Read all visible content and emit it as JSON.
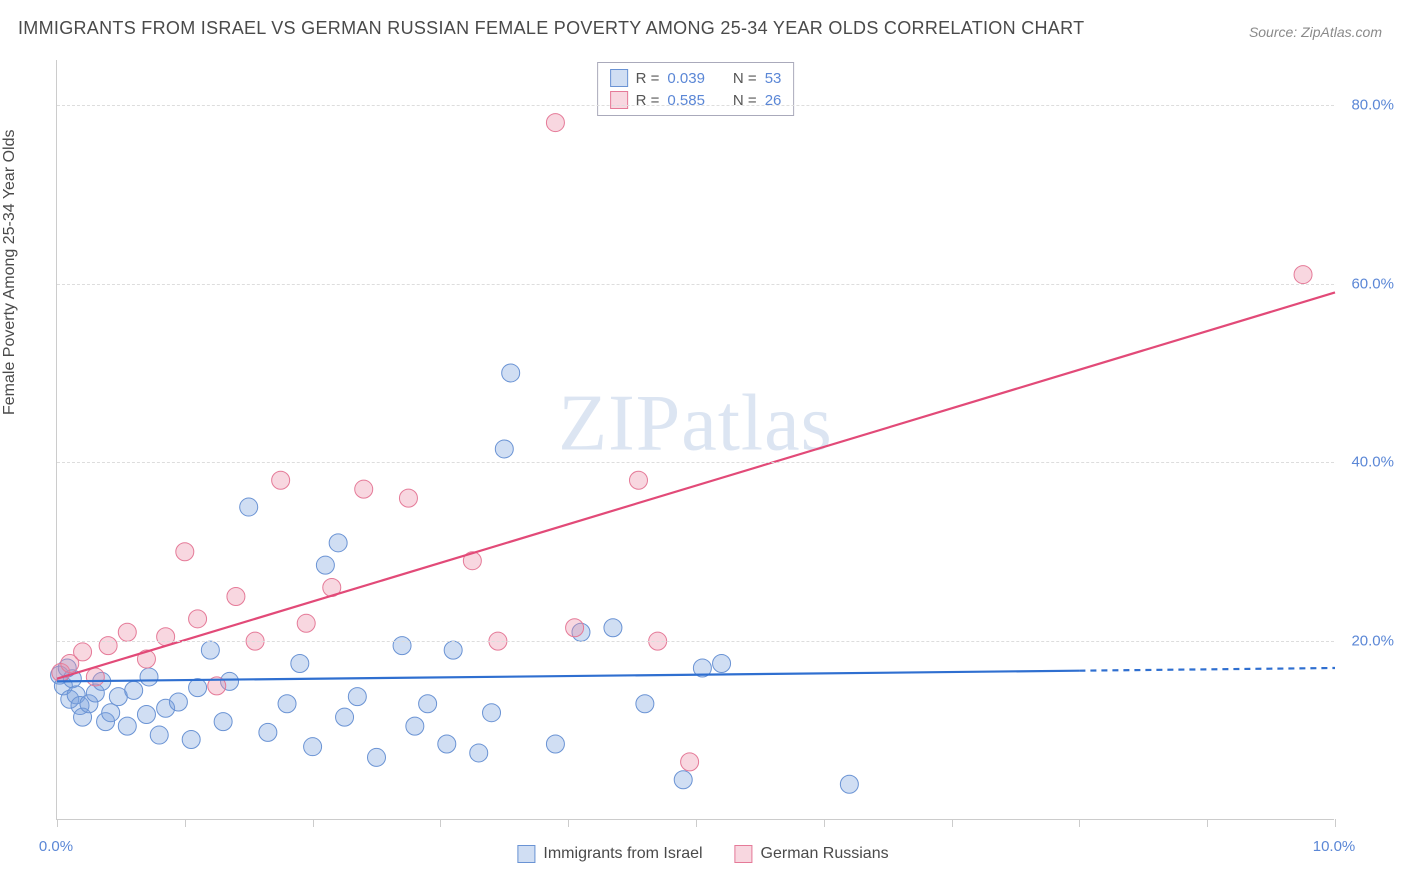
{
  "title": "IMMIGRANTS FROM ISRAEL VS GERMAN RUSSIAN FEMALE POVERTY AMONG 25-34 YEAR OLDS CORRELATION CHART",
  "source": "Source: ZipAtlas.com",
  "y_axis_label": "Female Poverty Among 25-34 Year Olds",
  "watermark_a": "ZIP",
  "watermark_b": "atlas",
  "chart": {
    "type": "scatter",
    "xlim": [
      0,
      10
    ],
    "ylim": [
      0,
      85
    ],
    "x_ticks": [
      0,
      1,
      2,
      3,
      4,
      5,
      6,
      7,
      8,
      9,
      10
    ],
    "x_tick_labels": {
      "0": "0.0%",
      "10": "10.0%"
    },
    "y_ticks": [
      20,
      40,
      60,
      80
    ],
    "y_tick_labels": [
      "20.0%",
      "40.0%",
      "60.0%",
      "80.0%"
    ],
    "background_color": "#ffffff",
    "grid_color": "#dddddd",
    "axis_color": "#cccccc",
    "tick_label_color": "#5b87d6",
    "series": [
      {
        "name": "Immigrants from Israel",
        "marker_fill": "rgba(120,160,220,0.35)",
        "marker_stroke": "#6a93d4",
        "marker_radius": 9,
        "line_color": "#2f6fd0",
        "line_width": 2.2,
        "r_value": "0.039",
        "n_value": "53",
        "regression": {
          "x1": 0,
          "y1": 15.5,
          "x2": 10,
          "y2": 17.0,
          "solid_until_x": 8.0
        },
        "points": [
          [
            0.02,
            16.2
          ],
          [
            0.05,
            15.0
          ],
          [
            0.08,
            17.0
          ],
          [
            0.1,
            13.5
          ],
          [
            0.12,
            15.8
          ],
          [
            0.15,
            14.0
          ],
          [
            0.18,
            12.8
          ],
          [
            0.2,
            11.5
          ],
          [
            0.25,
            13.0
          ],
          [
            0.3,
            14.2
          ],
          [
            0.35,
            15.5
          ],
          [
            0.38,
            11.0
          ],
          [
            0.42,
            12.0
          ],
          [
            0.48,
            13.8
          ],
          [
            0.55,
            10.5
          ],
          [
            0.6,
            14.5
          ],
          [
            0.7,
            11.8
          ],
          [
            0.8,
            9.5
          ],
          [
            0.72,
            16.0
          ],
          [
            0.85,
            12.5
          ],
          [
            0.95,
            13.2
          ],
          [
            1.05,
            9.0
          ],
          [
            1.1,
            14.8
          ],
          [
            1.2,
            19.0
          ],
          [
            1.3,
            11.0
          ],
          [
            1.35,
            15.5
          ],
          [
            1.5,
            35.0
          ],
          [
            1.65,
            9.8
          ],
          [
            1.8,
            13.0
          ],
          [
            1.9,
            17.5
          ],
          [
            2.0,
            8.2
          ],
          [
            2.1,
            28.5
          ],
          [
            2.2,
            31.0
          ],
          [
            2.25,
            11.5
          ],
          [
            2.35,
            13.8
          ],
          [
            2.5,
            7.0
          ],
          [
            2.7,
            19.5
          ],
          [
            2.8,
            10.5
          ],
          [
            2.9,
            13.0
          ],
          [
            3.05,
            8.5
          ],
          [
            3.1,
            19.0
          ],
          [
            3.3,
            7.5
          ],
          [
            3.4,
            12.0
          ],
          [
            3.5,
            41.5
          ],
          [
            3.55,
            50.0
          ],
          [
            3.9,
            8.5
          ],
          [
            4.1,
            21.0
          ],
          [
            4.35,
            21.5
          ],
          [
            4.6,
            13.0
          ],
          [
            4.9,
            4.5
          ],
          [
            5.2,
            17.5
          ],
          [
            6.2,
            4.0
          ],
          [
            5.05,
            17.0
          ]
        ]
      },
      {
        "name": "German Russians",
        "marker_fill": "rgba(235,140,165,0.35)",
        "marker_stroke": "#e57a98",
        "marker_radius": 9,
        "line_color": "#e24a78",
        "line_width": 2.2,
        "r_value": "0.585",
        "n_value": "26",
        "regression": {
          "x1": 0,
          "y1": 15.8,
          "x2": 10,
          "y2": 59.0,
          "solid_until_x": 10
        },
        "points": [
          [
            0.03,
            16.5
          ],
          [
            0.1,
            17.5
          ],
          [
            0.2,
            18.8
          ],
          [
            0.3,
            16.0
          ],
          [
            0.4,
            19.5
          ],
          [
            0.55,
            21.0
          ],
          [
            0.7,
            18.0
          ],
          [
            0.85,
            20.5
          ],
          [
            1.0,
            30.0
          ],
          [
            1.1,
            22.5
          ],
          [
            1.25,
            15.0
          ],
          [
            1.4,
            25.0
          ],
          [
            1.55,
            20.0
          ],
          [
            1.75,
            38.0
          ],
          [
            1.95,
            22.0
          ],
          [
            2.15,
            26.0
          ],
          [
            2.4,
            37.0
          ],
          [
            2.75,
            36.0
          ],
          [
            3.25,
            29.0
          ],
          [
            3.45,
            20.0
          ],
          [
            3.9,
            78.0
          ],
          [
            4.05,
            21.5
          ],
          [
            4.55,
            38.0
          ],
          [
            4.95,
            6.5
          ],
          [
            4.7,
            20.0
          ],
          [
            9.75,
            61.0
          ]
        ]
      }
    ]
  },
  "legend_top": {
    "r_label": "R =",
    "n_label": "N ="
  },
  "legend_bottom": {
    "items": [
      "Immigrants from Israel",
      "German Russians"
    ]
  }
}
